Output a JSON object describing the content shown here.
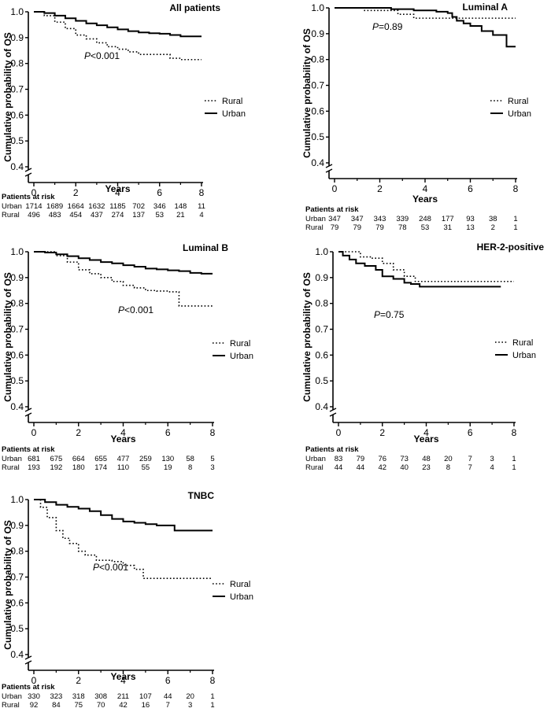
{
  "labels": {
    "ylabel": "Cumulative probability of OS",
    "xlabel": "Years",
    "risk_header": "Patients at risk"
  },
  "chart_data": [
    {
      "type": "line",
      "title": "All patients",
      "xlabel": "Years",
      "ylabel": "Cumulative probability of OS",
      "xlim": [
        0,
        8
      ],
      "ylim": [
        0.4,
        1.0
      ],
      "xticks": [
        "0",
        "2",
        "4",
        "6",
        "8"
      ],
      "yticks": [
        "0.4",
        "0.5",
        "0.6",
        "0.7",
        "0.8",
        "0.9",
        "1.0"
      ],
      "p_value": "P<0.001",
      "legend": [
        "Rural",
        "Urban"
      ],
      "series": [
        {
          "name": "Rural",
          "style": "dotted",
          "x": [
            0,
            0.5,
            1.0,
            1.5,
            2.0,
            2.5,
            3.0,
            3.5,
            4.0,
            4.5,
            5.0,
            5.5,
            6.0,
            6.5,
            7.0,
            8.0
          ],
          "y": [
            1.0,
            0.985,
            0.96,
            0.935,
            0.91,
            0.895,
            0.88,
            0.865,
            0.855,
            0.845,
            0.835,
            0.835,
            0.835,
            0.82,
            0.815,
            0.815
          ]
        },
        {
          "name": "Urban",
          "style": "solid",
          "x": [
            0,
            0.5,
            1.0,
            1.5,
            2.0,
            2.5,
            3.0,
            3.5,
            4.0,
            4.5,
            5.0,
            5.5,
            6.0,
            6.5,
            7.0,
            8.0
          ],
          "y": [
            1.0,
            0.995,
            0.985,
            0.975,
            0.965,
            0.955,
            0.948,
            0.94,
            0.932,
            0.925,
            0.92,
            0.917,
            0.915,
            0.91,
            0.905,
            0.905
          ]
        }
      ],
      "risk_table": {
        "rows": [
          {
            "label": "Urban",
            "values": [
              "1714",
              "1689",
              "1664",
              "1632",
              "1185",
              "702",
              "346",
              "148",
              "11"
            ]
          },
          {
            "label": "Rural",
            "values": [
              "496",
              "483",
              "454",
              "437",
              "274",
              "137",
              "53",
              "21",
              "4"
            ]
          }
        ]
      }
    },
    {
      "type": "line",
      "title": "Luminal A",
      "xlabel": "Years",
      "ylabel": "Cumulative probability of OS",
      "xlim": [
        0,
        8
      ],
      "ylim": [
        0.4,
        1.0
      ],
      "xticks": [
        "0",
        "2",
        "4",
        "6",
        "8"
      ],
      "yticks": [
        "0.4",
        "0.5",
        "0.6",
        "0.7",
        "0.8",
        "0.9",
        "1.0"
      ],
      "p_value": "P=0.89",
      "legend": [
        "Rural",
        "Urban"
      ],
      "series": [
        {
          "name": "Rural",
          "style": "dotted",
          "x": [
            1.3,
            2.8,
            3.5,
            8.0
          ],
          "y": [
            0.99,
            0.975,
            0.96,
            0.96
          ]
        },
        {
          "name": "Urban",
          "style": "solid",
          "x": [
            0,
            2.5,
            3.5,
            4.5,
            5.0,
            5.2,
            5.4,
            5.7,
            6.0,
            6.5,
            7.0,
            7.6,
            8.0
          ],
          "y": [
            1.0,
            0.995,
            0.99,
            0.985,
            0.98,
            0.965,
            0.95,
            0.94,
            0.93,
            0.91,
            0.895,
            0.85,
            0.85
          ]
        }
      ],
      "risk_table": {
        "rows": [
          {
            "label": "Urban",
            "values": [
              "347",
              "347",
              "343",
              "339",
              "248",
              "177",
              "93",
              "38",
              "1"
            ]
          },
          {
            "label": "Rural",
            "values": [
              "79",
              "79",
              "79",
              "78",
              "53",
              "31",
              "13",
              "2",
              "1"
            ]
          }
        ]
      }
    },
    {
      "type": "line",
      "title": "Luminal B",
      "xlabel": "Years",
      "ylabel": "Cumulative probability of OS",
      "xlim": [
        0,
        8
      ],
      "ylim": [
        0.4,
        1.0
      ],
      "xticks": [
        "0",
        "2",
        "4",
        "6",
        "8"
      ],
      "yticks": [
        "0.4",
        "0.5",
        "0.6",
        "0.7",
        "0.8",
        "0.9",
        "1.0"
      ],
      "p_value": "P<0.001",
      "legend": [
        "Rural",
        "Urban"
      ],
      "series": [
        {
          "name": "Rural",
          "style": "dotted",
          "x": [
            0,
            1.0,
            1.5,
            2.0,
            2.5,
            3.0,
            3.5,
            4.0,
            4.5,
            5.0,
            5.5,
            6.0,
            6.4,
            6.5,
            8.0
          ],
          "y": [
            1.0,
            0.985,
            0.96,
            0.93,
            0.915,
            0.9,
            0.885,
            0.87,
            0.86,
            0.85,
            0.848,
            0.845,
            0.845,
            0.79,
            0.79
          ]
        },
        {
          "name": "Urban",
          "style": "solid",
          "x": [
            0,
            0.5,
            1.0,
            1.5,
            2.0,
            2.5,
            3.0,
            3.5,
            4.0,
            4.5,
            5.0,
            5.5,
            6.0,
            6.5,
            7.0,
            7.5,
            8.0
          ],
          "y": [
            1.0,
            0.997,
            0.99,
            0.983,
            0.975,
            0.968,
            0.96,
            0.955,
            0.948,
            0.942,
            0.935,
            0.932,
            0.928,
            0.925,
            0.918,
            0.915,
            0.915
          ]
        }
      ],
      "risk_table": {
        "rows": [
          {
            "label": "Urban",
            "values": [
              "681",
              "675",
              "664",
              "655",
              "477",
              "259",
              "130",
              "58",
              "5"
            ]
          },
          {
            "label": "Rural",
            "values": [
              "193",
              "192",
              "180",
              "174",
              "110",
              "55",
              "19",
              "8",
              "3"
            ]
          }
        ]
      }
    },
    {
      "type": "line",
      "title": "HER-2-positive",
      "xlabel": "Years",
      "ylabel": "Cumulative probability of OS",
      "xlim": [
        0,
        8
      ],
      "ylim": [
        0.4,
        1.0
      ],
      "xticks": [
        "0",
        "2",
        "4",
        "6",
        "8"
      ],
      "yticks": [
        "0.4",
        "0.5",
        "0.6",
        "0.7",
        "0.8",
        "0.9",
        "1.0"
      ],
      "p_value": "P=0.75",
      "legend": [
        "Rural",
        "Urban"
      ],
      "series": [
        {
          "name": "Rural",
          "style": "dotted",
          "x": [
            0,
            0.5,
            1.0,
            1.5,
            2.0,
            2.5,
            3.0,
            3.5,
            8.0
          ],
          "y": [
            1.0,
            1.0,
            0.98,
            0.975,
            0.955,
            0.93,
            0.905,
            0.885,
            0.885
          ]
        },
        {
          "name": "Urban",
          "style": "solid",
          "x": [
            0,
            0.2,
            0.5,
            0.8,
            1.2,
            1.7,
            2.0,
            2.5,
            3.0,
            3.3,
            3.7,
            7.4
          ],
          "y": [
            1.0,
            0.985,
            0.97,
            0.955,
            0.945,
            0.93,
            0.905,
            0.895,
            0.88,
            0.875,
            0.865,
            0.865
          ]
        }
      ],
      "risk_table": {
        "rows": [
          {
            "label": "Urban",
            "values": [
              "83",
              "79",
              "76",
              "73",
              "48",
              "20",
              "7",
              "3",
              "1"
            ]
          },
          {
            "label": "Rural",
            "values": [
              "44",
              "44",
              "42",
              "40",
              "23",
              "8",
              "7",
              "4",
              "1"
            ]
          }
        ]
      }
    },
    {
      "type": "line",
      "title": "TNBC",
      "xlabel": "Years",
      "ylabel": "Cumulative probability of OS",
      "xlim": [
        0,
        8
      ],
      "ylim": [
        0.4,
        1.0
      ],
      "xticks": [
        "0",
        "2",
        "4",
        "6",
        "8"
      ],
      "yticks": [
        "0.4",
        "0.5",
        "0.6",
        "0.7",
        "0.8",
        "0.9",
        "1.0"
      ],
      "p_value": "P<0.001",
      "legend": [
        "Rural",
        "Urban"
      ],
      "series": [
        {
          "name": "Rural",
          "style": "dotted",
          "x": [
            0,
            0.3,
            0.6,
            1.0,
            1.3,
            1.6,
            2.0,
            2.3,
            2.8,
            3.5,
            4.0,
            4.5,
            4.9,
            5.5,
            8.0
          ],
          "y": [
            1.0,
            0.97,
            0.93,
            0.88,
            0.85,
            0.83,
            0.8,
            0.785,
            0.765,
            0.76,
            0.745,
            0.73,
            0.695,
            0.695,
            0.695
          ]
        },
        {
          "name": "Urban",
          "style": "solid",
          "x": [
            0,
            0.5,
            1.0,
            1.5,
            2.0,
            2.5,
            3.0,
            3.5,
            4.0,
            4.5,
            5.0,
            5.5,
            6.0,
            6.3,
            8.0
          ],
          "y": [
            1.0,
            0.99,
            0.98,
            0.972,
            0.965,
            0.955,
            0.94,
            0.925,
            0.915,
            0.91,
            0.905,
            0.9,
            0.9,
            0.88,
            0.88
          ]
        }
      ],
      "risk_table": {
        "rows": [
          {
            "label": "Urban",
            "values": [
              "330",
              "323",
              "318",
              "308",
              "211",
              "107",
              "44",
              "20",
              "1"
            ]
          },
          {
            "label": "Rural",
            "values": [
              "92",
              "84",
              "75",
              "70",
              "42",
              "16",
              "7",
              "3",
              "1"
            ]
          }
        ]
      }
    }
  ]
}
